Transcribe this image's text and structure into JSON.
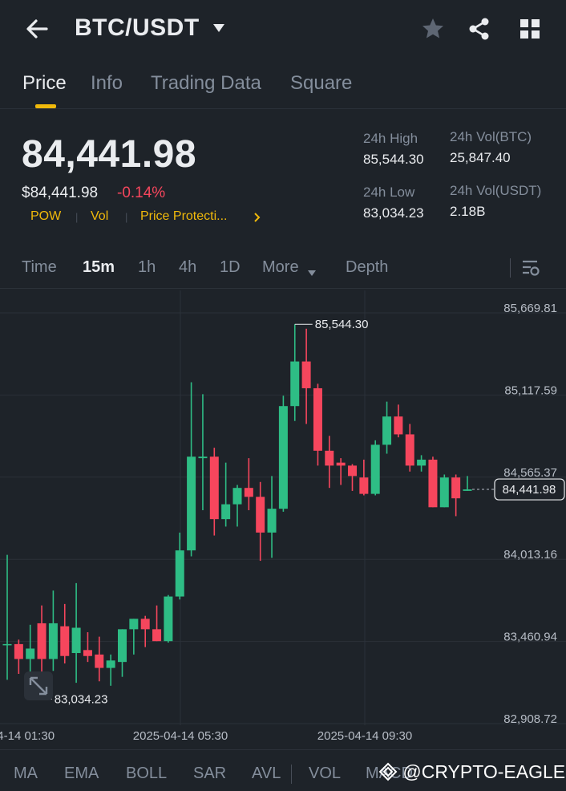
{
  "header": {
    "pair": "BTC/USDT",
    "icons": [
      "back-arrow-icon",
      "caret-down-icon",
      "star-icon",
      "share-icon",
      "grid-icon"
    ]
  },
  "tabs": [
    "Price",
    "Info",
    "Trading Data",
    "Square"
  ],
  "price": {
    "last": "84,441.98",
    "usd": "$84,441.98",
    "change": "-0.14%",
    "tags": [
      "POW",
      "Vol",
      "Price Protecti..."
    ]
  },
  "stats": {
    "high_label": "24h High",
    "high_value": "85,544.30",
    "low_label": "24h Low",
    "low_value": "83,034.23",
    "vol_btc_label": "24h Vol(BTC)",
    "vol_btc_value": "25,847.40",
    "vol_usdt_label": "24h Vol(USDT)",
    "vol_usdt_value": "2.18B"
  },
  "intervals": [
    "Time",
    "15m",
    "1h",
    "4h",
    "1D",
    "More",
    "Depth"
  ],
  "active_interval": "15m",
  "indicators": [
    "MA",
    "EMA",
    "BOLL",
    "SAR",
    "AVL",
    "VOL",
    "MACD"
  ],
  "watermark": "@CRYPTO-EAGLE",
  "colors": {
    "up": "#2ebd85",
    "down": "#f6465d",
    "accent": "#f0b90b",
    "bg": "#1e2329"
  },
  "chart_data": {
    "type": "candlestick",
    "price_axis_labels": [
      "85,669.81",
      "85,117.59",
      "84,565.37",
      "84,013.16",
      "83,460.94",
      "82,908.72"
    ],
    "time_axis_labels": [
      "04-14 01:30",
      "2025-04-14 05:30",
      "2025-04-14 09:30"
    ],
    "ylim": [
      82908.72,
      85669.81
    ],
    "high_marker": "85,544.30",
    "low_marker": "83,034.23",
    "last_price_label": "84,441.98",
    "candles": [
      {
        "o": 83400,
        "h": 84000,
        "l": 83160,
        "c": 83400
      },
      {
        "o": 83400,
        "h": 83430,
        "l": 83200,
        "c": 83300
      },
      {
        "o": 83300,
        "h": 83530,
        "l": 83030,
        "c": 83370
      },
      {
        "o": 83540,
        "h": 83660,
        "l": 83100,
        "c": 83300
      },
      {
        "o": 83300,
        "h": 83760,
        "l": 83220,
        "c": 83540
      },
      {
        "o": 83520,
        "h": 83670,
        "l": 83270,
        "c": 83320
      },
      {
        "o": 83340,
        "h": 83810,
        "l": 83140,
        "c": 83510
      },
      {
        "o": 83360,
        "h": 83480,
        "l": 83280,
        "c": 83320
      },
      {
        "o": 83330,
        "h": 83450,
        "l": 83150,
        "c": 83240
      },
      {
        "o": 83240,
        "h": 83330,
        "l": 83120,
        "c": 83290
      },
      {
        "o": 83280,
        "h": 83500,
        "l": 83180,
        "c": 83500
      },
      {
        "o": 83500,
        "h": 83570,
        "l": 83330,
        "c": 83570
      },
      {
        "o": 83570,
        "h": 83590,
        "l": 83380,
        "c": 83500
      },
      {
        "o": 83500,
        "h": 83660,
        "l": 83420,
        "c": 83420
      },
      {
        "o": 83420,
        "h": 83730,
        "l": 83410,
        "c": 83720
      },
      {
        "o": 83720,
        "h": 84150,
        "l": 83700,
        "c": 84030
      },
      {
        "o": 84030,
        "h": 85160,
        "l": 83990,
        "c": 84660
      },
      {
        "o": 84650,
        "h": 85080,
        "l": 84300,
        "c": 84660
      },
      {
        "o": 84660,
        "h": 84720,
        "l": 84130,
        "c": 84240
      },
      {
        "o": 84240,
        "h": 84620,
        "l": 84190,
        "c": 84340
      },
      {
        "o": 84340,
        "h": 84470,
        "l": 84190,
        "c": 84450
      },
      {
        "o": 84450,
        "h": 84650,
        "l": 84300,
        "c": 84390
      },
      {
        "o": 84390,
        "h": 84490,
        "l": 83960,
        "c": 84150
      },
      {
        "o": 84150,
        "h": 84530,
        "l": 83980,
        "c": 84310
      },
      {
        "o": 84310,
        "h": 85070,
        "l": 84290,
        "c": 85000
      },
      {
        "o": 85000,
        "h": 85550,
        "l": 84900,
        "c": 85300
      },
      {
        "o": 85300,
        "h": 85520,
        "l": 84880,
        "c": 85120
      },
      {
        "o": 85120,
        "h": 85150,
        "l": 84600,
        "c": 84700
      },
      {
        "o": 84700,
        "h": 84800,
        "l": 84450,
        "c": 84600
      },
      {
        "o": 84620,
        "h": 84650,
        "l": 84470,
        "c": 84600
      },
      {
        "o": 84600,
        "h": 84610,
        "l": 84430,
        "c": 84530
      },
      {
        "o": 84520,
        "h": 84640,
        "l": 84400,
        "c": 84410
      },
      {
        "o": 84410,
        "h": 84770,
        "l": 84400,
        "c": 84740
      },
      {
        "o": 84740,
        "h": 85030,
        "l": 84680,
        "c": 84930
      },
      {
        "o": 84930,
        "h": 85010,
        "l": 84790,
        "c": 84810
      },
      {
        "o": 84810,
        "h": 84880,
        "l": 84560,
        "c": 84600
      },
      {
        "o": 84600,
        "h": 84670,
        "l": 84560,
        "c": 84640
      },
      {
        "o": 84640,
        "h": 84660,
        "l": 84320,
        "c": 84320
      },
      {
        "o": 84320,
        "h": 84540,
        "l": 84320,
        "c": 84520
      },
      {
        "o": 84520,
        "h": 84540,
        "l": 84260,
        "c": 84380
      },
      {
        "o": 84430,
        "h": 84530,
        "l": 84430,
        "c": 84440
      }
    ]
  }
}
